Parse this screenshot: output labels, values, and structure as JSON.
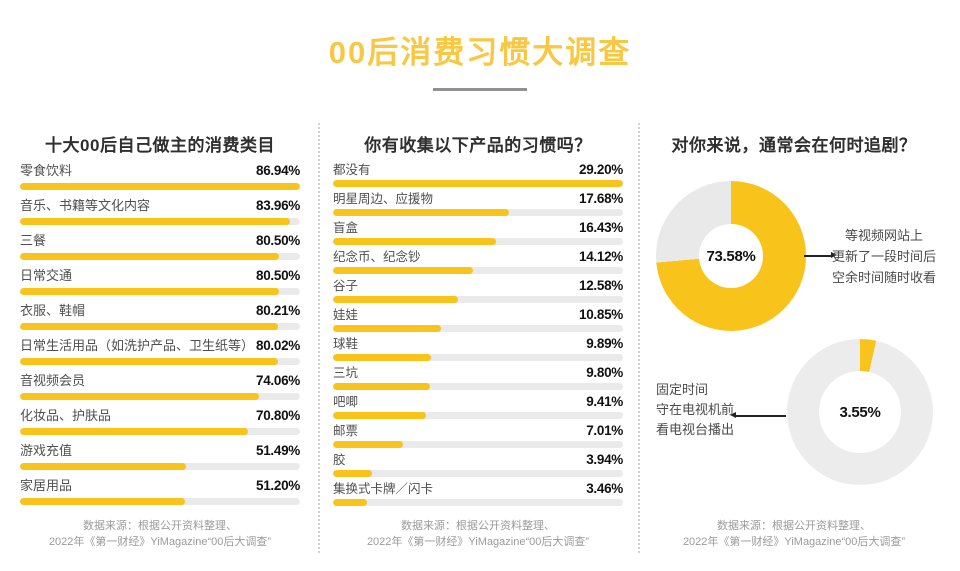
{
  "header": {
    "title": "00后消费习惯大调查"
  },
  "colors": {
    "accent": "#F8C41C",
    "bar_track": "#EAEAEA",
    "title_yellow": "#F8C845",
    "text_dark": "#2f2f2f",
    "text_label": "#4f4f4f",
    "text_source": "#9b9b9b"
  },
  "source": {
    "line1": "数据来源：根据公开资料整理、",
    "line2": "2022年《第一财经》YiMagazine“00后大调查”"
  },
  "chart_data": [
    {
      "type": "bar",
      "orientation": "horizontal",
      "title": "十大00后自己做主的消费类目",
      "unit": "%",
      "bars_normalized_to_max": true,
      "categories": [
        "零食饮料",
        "音乐、书籍等文化内容",
        "三餐",
        "日常交通",
        "衣服、鞋帽",
        "日常生活用品（如洗护产品、卫生纸等）",
        "音视频会员",
        "化妆品、护肤品",
        "游戏充值",
        "家居用品"
      ],
      "values": [
        86.94,
        83.96,
        80.5,
        80.5,
        80.21,
        80.02,
        74.06,
        70.8,
        51.49,
        51.2
      ]
    },
    {
      "type": "bar",
      "orientation": "horizontal",
      "title": "你有收集以下产品的习惯吗？",
      "unit": "%",
      "bars_normalized_to_max": true,
      "categories": [
        "都没有",
        "明星周边、应援物",
        "盲盒",
        "纪念币、纪念钞",
        "谷子",
        "娃娃",
        "球鞋",
        "三坑",
        "吧唧",
        "邮票",
        "胶",
        "集换式卡牌／闪卡"
      ],
      "values": [
        29.2,
        17.68,
        16.43,
        14.12,
        12.58,
        10.85,
        9.89,
        9.8,
        9.41,
        7.01,
        3.94,
        3.46
      ]
    },
    {
      "type": "pie",
      "subtype": "donut",
      "title": "对你来说，通常会在何时追剧？",
      "unit": "%",
      "slices": [
        {
          "value": 73.58,
          "display": "73.58%",
          "rest_color": "#E9E9E9",
          "label": "等视频网站上更新了一段时间后空余时间随时收看",
          "note_lines": [
            "等视频网站上",
            "更新了一段时间后",
            "空余时间随时收看"
          ]
        },
        {
          "value": 3.55,
          "display": "3.55%",
          "rest_color": "#ECECEC",
          "label": "固定时间守在电视机前看电视台播出",
          "note_lines": [
            "固定时间",
            "守在电视机前",
            "看电视台播出"
          ]
        }
      ]
    }
  ]
}
